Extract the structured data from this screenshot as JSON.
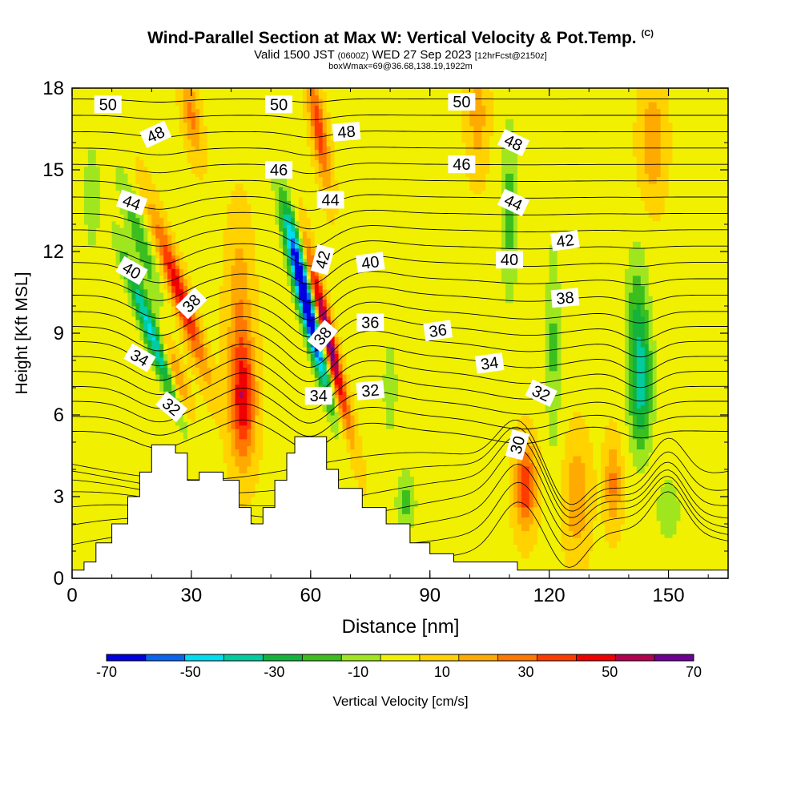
{
  "chart_data": {
    "type": "heatmap",
    "title": "Wind-Parallel Section at Max W: Vertical Velocity & Pot.Temp.",
    "title_mark": "(C)",
    "subtitle": {
      "pre": "Valid 1500 JST",
      "utc": "(0600Z)",
      "date": "WED 27 Sep 2023",
      "fcst": "[12hrFcst@2150z]"
    },
    "subtitle2": "boxWmax=69@36.68,138.19,1922m",
    "xlabel": "Distance [nm]",
    "ylabel": "Height [Kft MSL]",
    "xlim": [
      0,
      165
    ],
    "ylim": [
      0,
      18
    ],
    "xticks": [
      0,
      30,
      60,
      90,
      120,
      150
    ],
    "yticks": [
      0,
      3,
      6,
      9,
      12,
      15,
      18
    ],
    "colorbar": {
      "label": "Vertical Velocity [cm/s]",
      "ticks": [
        -70,
        -50,
        -30,
        -10,
        10,
        30,
        50,
        70
      ],
      "bins": [
        -70,
        -60,
        -50,
        -40,
        -30,
        -20,
        -10,
        0,
        10,
        20,
        30,
        40,
        50,
        60,
        70
      ],
      "colors": [
        "#0000e0",
        "#0a64f0",
        "#00dcf0",
        "#00cca0",
        "#14b43c",
        "#3cbe1e",
        "#a0e61e",
        "#f0f000",
        "#ffd200",
        "#ffaa00",
        "#ff7800",
        "#ff3c00",
        "#f00000",
        "#b40050",
        "#6e0096"
      ]
    },
    "w_features": [
      {
        "x": 27,
        "y": 10.5,
        "sx": 2.2,
        "sy": 2.8,
        "tilt": -2.2,
        "w": 50
      },
      {
        "x": 26,
        "y": 7.5,
        "sx": 2.0,
        "sy": 1.5,
        "tilt": -2.0,
        "w": 30
      },
      {
        "x": 20,
        "y": 9.0,
        "sx": 2.3,
        "sy": 3.0,
        "tilt": -2.4,
        "w": -50
      },
      {
        "x": 17,
        "y": 12.5,
        "sx": 2.5,
        "sy": 2.5,
        "tilt": -2.0,
        "w": -25
      },
      {
        "x": 43,
        "y": 6.5,
        "sx": 3.0,
        "sy": 2.2,
        "tilt": 0,
        "w": 48
      },
      {
        "x": 42,
        "y": 10.0,
        "sx": 3.0,
        "sy": 3.0,
        "tilt": 0,
        "w": 20
      },
      {
        "x": 64,
        "y": 9.0,
        "sx": 1.7,
        "sy": 3.2,
        "tilt": -1.6,
        "w": 75
      },
      {
        "x": 60,
        "y": 9.5,
        "sx": 2.0,
        "sy": 3.0,
        "tilt": -1.6,
        "w": -75
      },
      {
        "x": 56,
        "y": 12.0,
        "sx": 2.5,
        "sy": 2.5,
        "tilt": -1.3,
        "w": -35
      },
      {
        "x": 62,
        "y": 16.5,
        "sx": 1.8,
        "sy": 2.0,
        "tilt": -1.0,
        "w": 40
      },
      {
        "x": 30,
        "y": 17.0,
        "sx": 2.0,
        "sy": 1.5,
        "tilt": -1.0,
        "w": 25
      },
      {
        "x": 114,
        "y": 3.4,
        "sx": 2.5,
        "sy": 1.5,
        "tilt": 0,
        "w": 42
      },
      {
        "x": 127,
        "y": 3.0,
        "sx": 3.0,
        "sy": 2.0,
        "tilt": 0,
        "w": 22
      },
      {
        "x": 143,
        "y": 7.0,
        "sx": 3.0,
        "sy": 2.5,
        "tilt": 0,
        "w": -40
      },
      {
        "x": 142,
        "y": 10.0,
        "sx": 3.0,
        "sy": 2.5,
        "tilt": 0,
        "w": -20
      },
      {
        "x": 121,
        "y": 8.5,
        "sx": 2.0,
        "sy": 4.0,
        "tilt": 0,
        "w": -20
      },
      {
        "x": 110,
        "y": 13.5,
        "sx": 2.2,
        "sy": 3.5,
        "tilt": 0,
        "w": -22
      },
      {
        "x": 146,
        "y": 16.0,
        "sx": 3.0,
        "sy": 2.0,
        "tilt": 0,
        "w": 22
      },
      {
        "x": 102,
        "y": 17.0,
        "sx": 2.5,
        "sy": 2.0,
        "tilt": 0,
        "w": 18
      },
      {
        "x": 84,
        "y": 2.8,
        "sx": 2.5,
        "sy": 1.2,
        "tilt": 0,
        "w": -22
      },
      {
        "x": 150,
        "y": 2.5,
        "sx": 3.0,
        "sy": 1.2,
        "tilt": 0,
        "w": -18
      },
      {
        "x": 80,
        "y": 7.0,
        "sx": 2.0,
        "sy": 2.0,
        "tilt": 0,
        "w": -15
      },
      {
        "x": 5,
        "y": 14.0,
        "sx": 2.0,
        "sy": 2.0,
        "tilt": 0,
        "w": -18
      },
      {
        "x": 136,
        "y": 3.5,
        "sx": 2.0,
        "sy": 1.5,
        "tilt": 0,
        "w": 25
      }
    ],
    "terrain": [
      [
        0,
        0.3
      ],
      [
        3,
        0.6
      ],
      [
        6,
        1.3
      ],
      [
        10,
        2.0
      ],
      [
        14,
        3.0
      ],
      [
        17,
        3.9
      ],
      [
        20,
        4.9
      ],
      [
        26,
        4.6
      ],
      [
        29,
        3.6
      ],
      [
        32,
        3.9
      ],
      [
        38,
        3.6
      ],
      [
        42,
        2.6
      ],
      [
        45,
        2.0
      ],
      [
        48,
        2.6
      ],
      [
        51,
        3.6
      ],
      [
        54,
        4.6
      ],
      [
        56,
        5.2
      ],
      [
        61,
        5.2
      ],
      [
        64,
        4.0
      ],
      [
        67,
        3.3
      ],
      [
        73,
        2.6
      ],
      [
        79,
        2.0
      ],
      [
        85,
        1.3
      ],
      [
        90,
        0.9
      ],
      [
        96,
        0.6
      ],
      [
        112,
        0.3
      ],
      [
        165,
        0.3
      ]
    ],
    "theta_levels": [
      30,
      31,
      32,
      33,
      34,
      35,
      36,
      37,
      38,
      39,
      40,
      41,
      42,
      43,
      44,
      45,
      46,
      47,
      48,
      49,
      50,
      51
    ],
    "theta_label_values": [
      50,
      48,
      44,
      40,
      38,
      34,
      32,
      50,
      46,
      48,
      44,
      42,
      38,
      34,
      40,
      36,
      32,
      50,
      46,
      36,
      48,
      44,
      40,
      42,
      38,
      34,
      32,
      30
    ],
    "theta_labels": [
      {
        "text": "50",
        "x": 9,
        "y": 17.4,
        "rot": 0
      },
      {
        "text": "48",
        "x": 21,
        "y": 16.3,
        "rot": -25
      },
      {
        "text": "44",
        "x": 15,
        "y": 13.8,
        "rot": 20
      },
      {
        "text": "40",
        "x": 15,
        "y": 11.3,
        "rot": 30
      },
      {
        "text": "38",
        "x": 30,
        "y": 10.1,
        "rot": -45
      },
      {
        "text": "34",
        "x": 17,
        "y": 8.1,
        "rot": 30
      },
      {
        "text": "32",
        "x": 25,
        "y": 6.3,
        "rot": 40
      },
      {
        "text": "50",
        "x": 52,
        "y": 17.4,
        "rot": 0
      },
      {
        "text": "46",
        "x": 52,
        "y": 15.0,
        "rot": 0
      },
      {
        "text": "48",
        "x": 69,
        "y": 16.4,
        "rot": -5
      },
      {
        "text": "44",
        "x": 65,
        "y": 13.9,
        "rot": 0
      },
      {
        "text": "42",
        "x": 63,
        "y": 11.7,
        "rot": -75
      },
      {
        "text": "38",
        "x": 63,
        "y": 8.9,
        "rot": -50
      },
      {
        "text": "34",
        "x": 62,
        "y": 6.7,
        "rot": 0
      },
      {
        "text": "40",
        "x": 75,
        "y": 11.6,
        "rot": -8
      },
      {
        "text": "36",
        "x": 75,
        "y": 9.4,
        "rot": 0
      },
      {
        "text": "32",
        "x": 75,
        "y": 6.9,
        "rot": -5
      },
      {
        "text": "50",
        "x": 98,
        "y": 17.5,
        "rot": 0
      },
      {
        "text": "46",
        "x": 98,
        "y": 15.2,
        "rot": 0
      },
      {
        "text": "36",
        "x": 92,
        "y": 9.1,
        "rot": -8
      },
      {
        "text": "48",
        "x": 111,
        "y": 16.0,
        "rot": 25
      },
      {
        "text": "44",
        "x": 111,
        "y": 13.8,
        "rot": 25
      },
      {
        "text": "40",
        "x": 110,
        "y": 11.7,
        "rot": 0
      },
      {
        "text": "42",
        "x": 124,
        "y": 12.4,
        "rot": -8
      },
      {
        "text": "38",
        "x": 124,
        "y": 10.3,
        "rot": -5
      },
      {
        "text": "34",
        "x": 105,
        "y": 7.9,
        "rot": -8
      },
      {
        "text": "32",
        "x": 118,
        "y": 6.8,
        "rot": 25
      },
      {
        "text": "30",
        "x": 112,
        "y": 4.9,
        "rot": -75
      }
    ]
  }
}
